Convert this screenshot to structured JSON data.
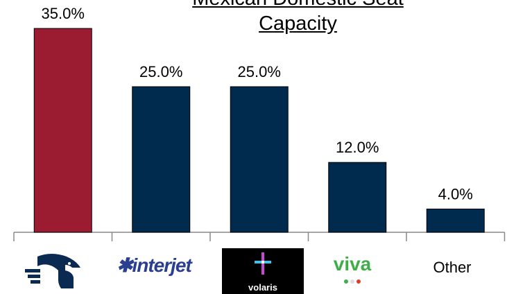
{
  "chart_data": {
    "type": "bar",
    "title_lines": [
      "Mexican Domestic Seat",
      "Capacity"
    ],
    "categories": [
      "Aeroméxico",
      "Interjet",
      "Volaris",
      "Viva",
      "Other"
    ],
    "values": [
      35.0,
      25.0,
      25.0,
      12.0,
      4.0
    ],
    "value_labels": [
      "35.0%",
      "25.0%",
      "25.0%",
      "12.0%",
      "4.0%"
    ],
    "bar_colors": [
      "#9b1b30",
      "#002b4f",
      "#002b4f",
      "#002b4f",
      "#002b4f"
    ],
    "ylim": [
      0,
      35
    ],
    "grid": false,
    "legend": "none"
  },
  "logos": {
    "interjet": "interjet",
    "volaris": "volaris",
    "viva": "viva",
    "aeromexico_icon": "eagle-icon"
  },
  "x_labels": {
    "other": "Other"
  }
}
